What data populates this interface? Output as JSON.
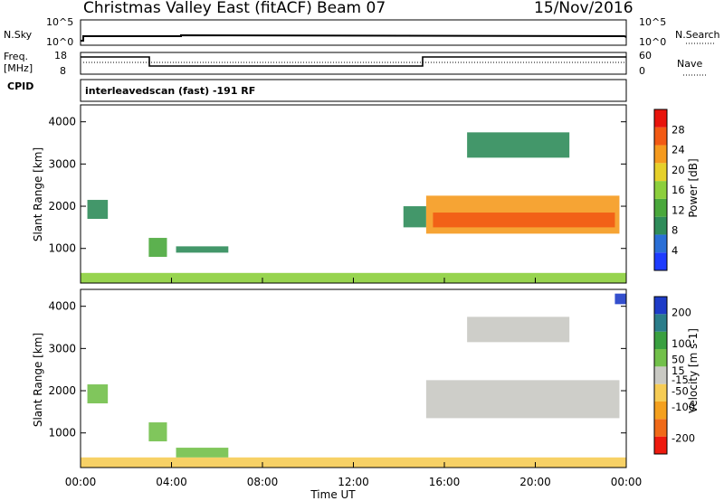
{
  "header": {
    "station": "Christmas Valley East (fitACF)",
    "beam": "Beam 07",
    "date": "15/Nov/2016"
  },
  "top_panels": {
    "nsky_label": "N.Sky",
    "nsearch_label": "N.Search",
    "log_top": "10^5",
    "log_bottom": "10^0",
    "freq_label_line1": "Freq.",
    "freq_label_line2": "[MHz]",
    "freq_top": "18",
    "freq_bottom": "8",
    "nave_label": "Nave",
    "nave_top": "60",
    "nave_bottom": "0",
    "cpid_label": "CPID",
    "cpid_text": "interleavedscan (fast) -191 RF"
  },
  "colors": {
    "power": [
      "#1e3cff",
      "#2a6fd6",
      "#2f8c5a",
      "#4aa83c",
      "#8ccf3c",
      "#e6d02a",
      "#f59a1e",
      "#f25a14",
      "#e8140c"
    ],
    "velocity": [
      "#ee1a0e",
      "#f06a18",
      "#f4a01e",
      "#f6cc55",
      "#c9c9c3",
      "#72c04a",
      "#3aa040",
      "#2b7d8a",
      "#1e3cc8"
    ]
  },
  "chart_data": [
    {
      "type": "heatmap",
      "panel": "power",
      "xlabel": "",
      "ylabel": "Slant Range [km]",
      "x_ticks": [
        "00:00",
        "04:00",
        "08:00",
        "12:00",
        "16:00",
        "20:00",
        "00:00"
      ],
      "y_ticks": [
        1000,
        2000,
        3000,
        4000
      ],
      "ylim": [
        180,
        4400
      ],
      "colorbar_label": "Power [dB]",
      "colorbar_ticks": [
        4,
        8,
        12,
        16,
        20,
        24,
        28
      ],
      "colorbar_range": [
        0,
        32
      ],
      "regions": [
        {
          "t0": 0.0,
          "t1": 24.0,
          "r0": 190,
          "r1": 420,
          "v": 16
        },
        {
          "t0": 3.0,
          "t1": 3.8,
          "r0": 800,
          "r1": 1250,
          "v": 12
        },
        {
          "t0": 4.2,
          "t1": 6.5,
          "r0": 900,
          "r1": 1050,
          "v": 8
        },
        {
          "t0": 0.3,
          "t1": 1.2,
          "r0": 1700,
          "r1": 2150,
          "v": 8
        },
        {
          "t0": 14.2,
          "t1": 15.2,
          "r0": 1500,
          "r1": 2000,
          "v": 10
        },
        {
          "t0": 15.2,
          "t1": 23.7,
          "r0": 1350,
          "r1": 2250,
          "v": 22
        },
        {
          "t0": 15.5,
          "t1": 23.5,
          "r0": 1500,
          "r1": 1850,
          "v": 28
        },
        {
          "t0": 17.0,
          "t1": 21.5,
          "r0": 3150,
          "r1": 3750,
          "v": 8
        }
      ]
    },
    {
      "type": "heatmap",
      "panel": "velocity",
      "xlabel": "Time UT",
      "ylabel": "Slant Range [km]",
      "x_ticks": [
        "00:00",
        "04:00",
        "08:00",
        "12:00",
        "16:00",
        "20:00",
        "00:00"
      ],
      "y_ticks": [
        1000,
        2000,
        3000,
        4000
      ],
      "ylim": [
        180,
        4400
      ],
      "colorbar_label": "Velocity [m s-1]",
      "colorbar_ticks": [
        -200,
        -100,
        -50,
        -15,
        15,
        50,
        100,
        200
      ],
      "colorbar_range": [
        -250,
        250
      ],
      "regions": [
        {
          "t0": 0.0,
          "t1": 24.0,
          "r0": 190,
          "r1": 420,
          "v": -30
        },
        {
          "t0": 3.0,
          "t1": 3.8,
          "r0": 800,
          "r1": 1250,
          "v": 40
        },
        {
          "t0": 4.2,
          "t1": 6.5,
          "r0": 420,
          "r1": 650,
          "v": 35
        },
        {
          "t0": 0.3,
          "t1": 1.2,
          "r0": 1700,
          "r1": 2150,
          "v": 60
        },
        {
          "t0": 15.2,
          "t1": 23.7,
          "r0": 1350,
          "r1": 2250,
          "v": 0
        },
        {
          "t0": 17.0,
          "t1": 21.5,
          "r0": 3150,
          "r1": 3750,
          "v": 0
        },
        {
          "t0": 23.5,
          "t1": 24.0,
          "r0": 4050,
          "r1": 4300,
          "v": 200
        }
      ]
    }
  ]
}
